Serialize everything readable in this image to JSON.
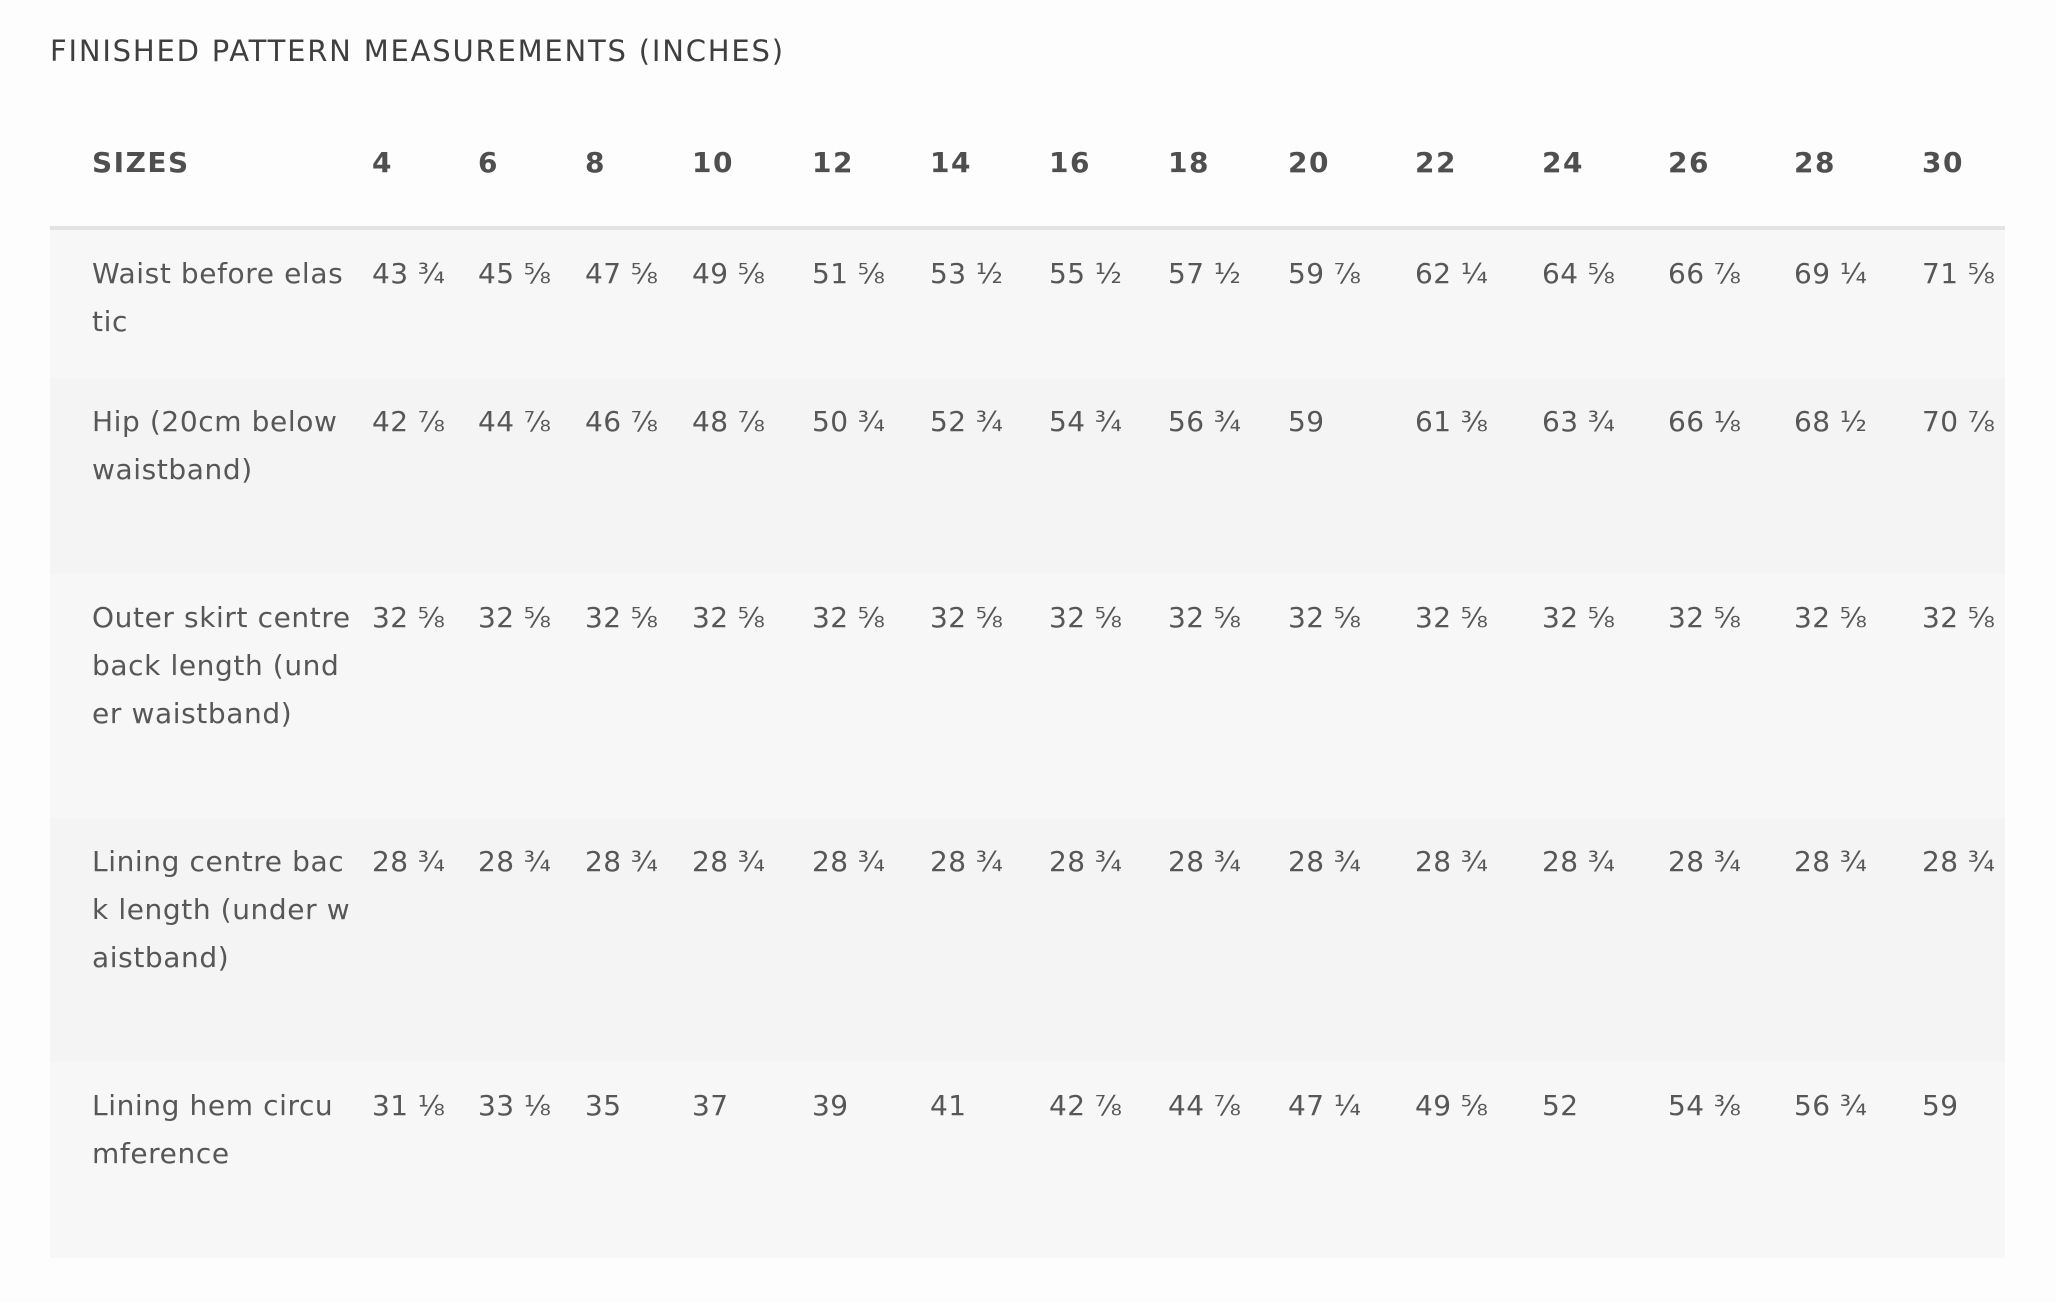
{
  "title": "FINISHED PATTERN MEASUREMENTS (INCHES)",
  "table": {
    "header": [
      "SIZES",
      "4",
      "6",
      "8",
      "10",
      "12",
      "14",
      "16",
      "18",
      "20",
      "22",
      "24",
      "26",
      "28",
      "30"
    ],
    "rows": [
      {
        "label": "Waist before elastic",
        "values": [
          "43 ¾",
          "45 ⅝",
          "47 ⅝",
          "49 ⅝",
          "51 ⅝",
          "53 ½",
          "55 ½",
          "57 ½",
          "59 ⅞",
          "62 ¼",
          "64 ⅝",
          "66 ⅞",
          "69 ¼",
          "71 ⅝"
        ]
      },
      {
        "label": "Hip (20cm below waistband)",
        "values": [
          "42 ⅞",
          "44 ⅞",
          "46 ⅞",
          "48 ⅞",
          "50 ¾",
          "52 ¾",
          "54 ¾",
          "56 ¾",
          "59",
          "61 ⅜",
          "63 ¾",
          "66 ⅛",
          "68 ½",
          "70 ⅞"
        ]
      },
      {
        "label": "Outer skirt centre back length (under waistband)",
        "values": [
          "32 ⅝",
          "32 ⅝",
          "32 ⅝",
          "32 ⅝",
          "32 ⅝",
          "32 ⅝",
          "32 ⅝",
          "32 ⅝",
          "32 ⅝",
          "32 ⅝",
          "32 ⅝",
          "32 ⅝",
          "32 ⅝",
          "32 ⅝"
        ]
      },
      {
        "label": "Lining centre back length (under waistband)",
        "values": [
          "28 ¾",
          "28 ¾",
          "28 ¾",
          "28 ¾",
          "28 ¾",
          "28 ¾",
          "28 ¾",
          "28 ¾",
          "28 ¾",
          "28 ¾",
          "28 ¾",
          "28 ¾",
          "28 ¾",
          "28 ¾"
        ]
      },
      {
        "label": "Lining hem circumference",
        "values": [
          "31 ⅛",
          "33 ⅛",
          "35",
          "37",
          "39",
          "41",
          "42 ⅞",
          "44 ⅞",
          "47 ¼",
          "49 ⅝",
          "52",
          "54 ⅜",
          "56 ¾",
          "59"
        ]
      }
    ]
  }
}
